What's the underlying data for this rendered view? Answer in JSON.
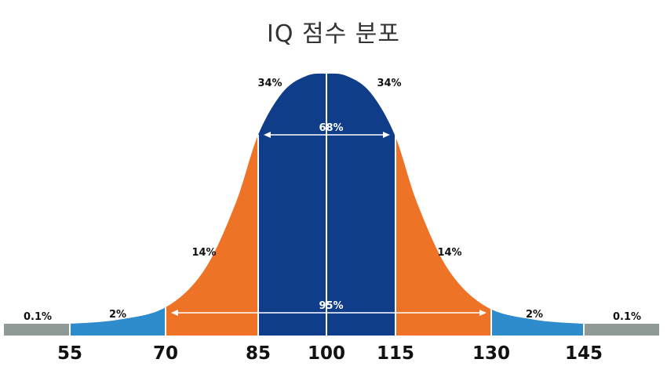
{
  "title": "IQ 점수 분포",
  "ticks": [
    "55",
    "70",
    "85",
    "100",
    "115",
    "130",
    "145"
  ],
  "regions": {
    "left_tail": "0.1%",
    "left_2": "2%",
    "left_14": "14%",
    "left_34": "34%",
    "right_34": "34%",
    "right_14": "14%",
    "right_2": "2%",
    "right_tail": "0.1%"
  },
  "spans": {
    "one_sd": "68%",
    "two_sd": "95%"
  },
  "colors": {
    "tail": "#8f9a97",
    "two_sd": "#2e8ccc",
    "one_to_two_sd": "#ef7327",
    "one_sd": "#0f3d89"
  }
}
